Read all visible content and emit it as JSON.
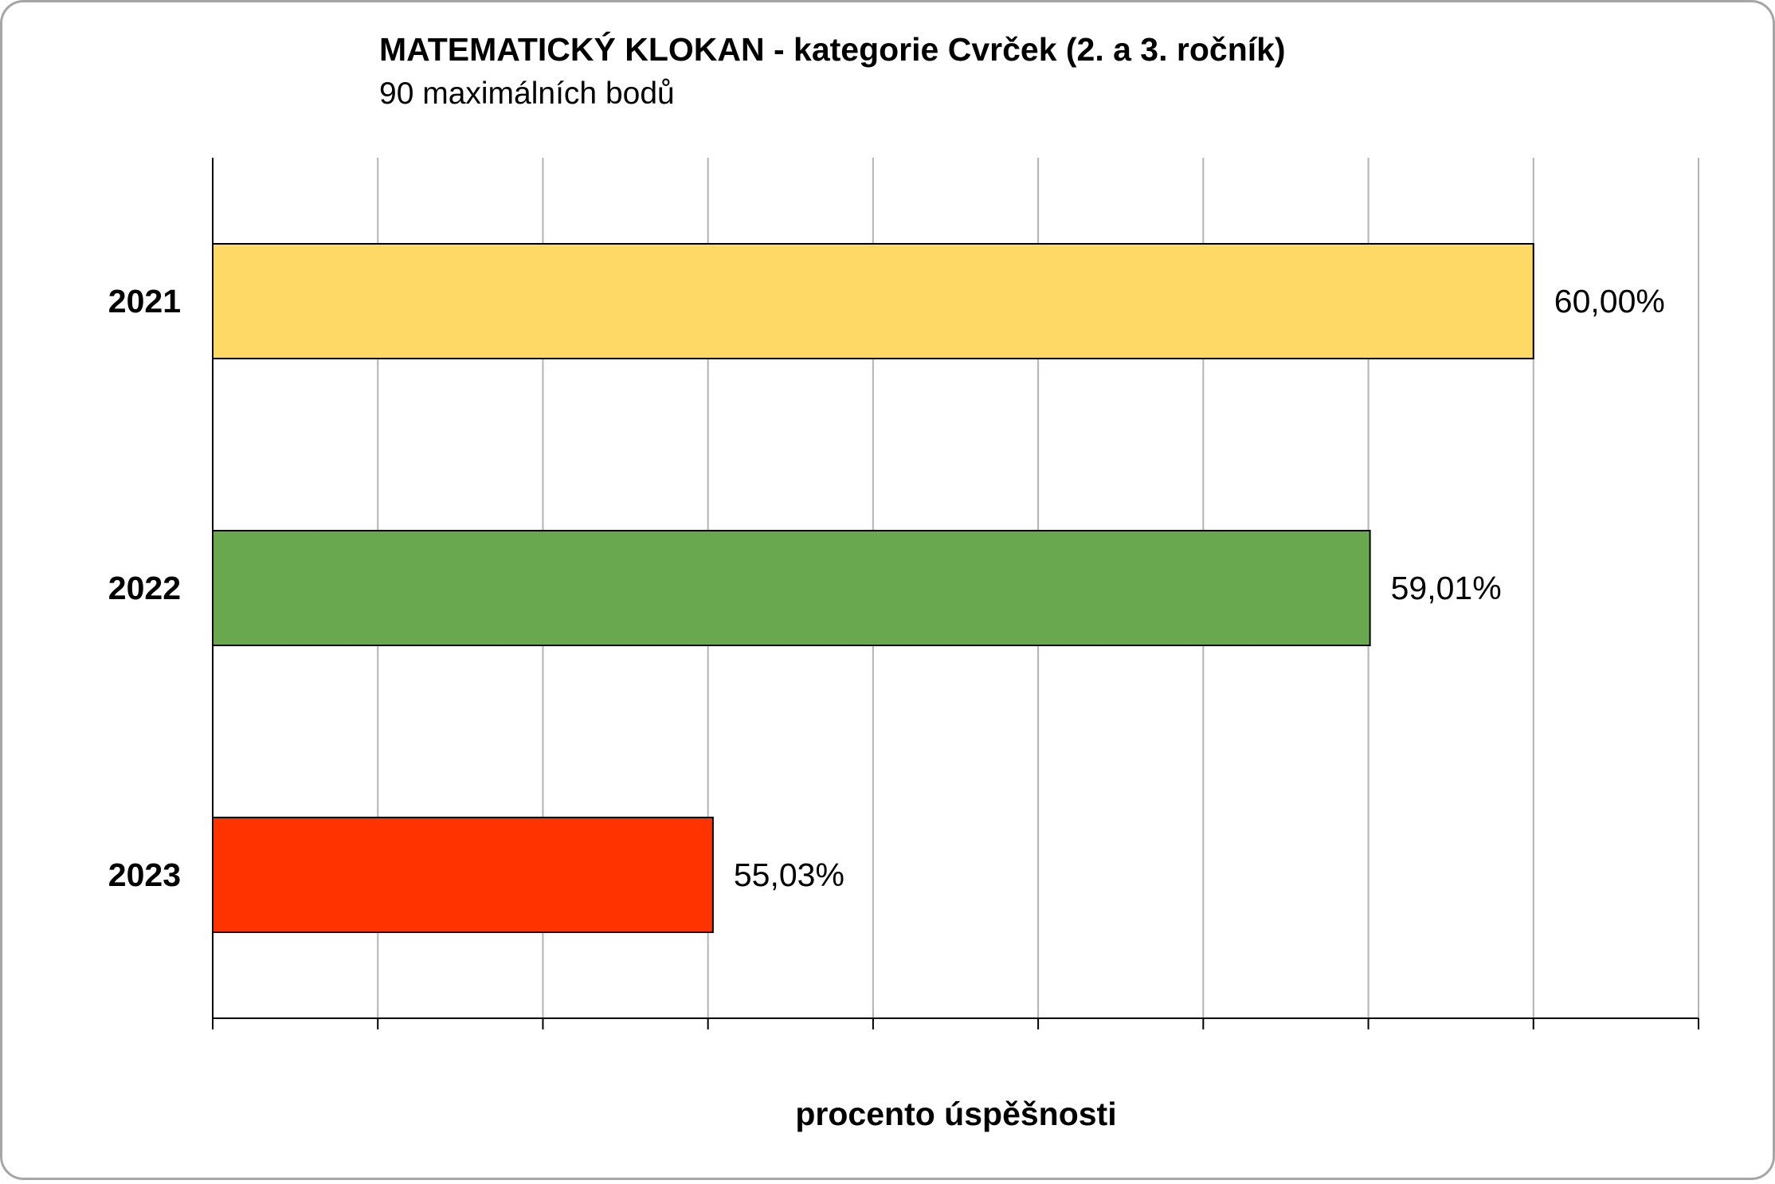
{
  "chart_data": {
    "type": "bar",
    "orientation": "horizontal",
    "title": "MATEMATICKÝ KLOKAN - kategorie Cvrček (2. a 3. ročník)",
    "subtitle": "90 maximálních bodů",
    "xlabel": "procento úspěšnosti",
    "ylabel": "",
    "categories": [
      "2021",
      "2022",
      "2023"
    ],
    "values": [
      60.0,
      59.01,
      55.03
    ],
    "data_labels": [
      "60,00%",
      "59,01%",
      "55,03%"
    ],
    "colors": [
      "#FFD966",
      "#6AA84F",
      "#FF3300"
    ],
    "xlim": [
      52,
      61
    ],
    "x_grid_step": 1,
    "grid": true,
    "legend": "none",
    "x_tick_labels_shown": false
  }
}
